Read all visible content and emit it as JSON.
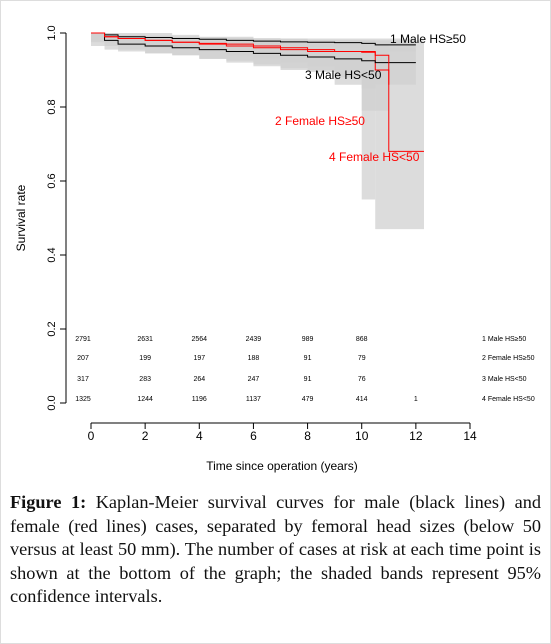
{
  "chart_data": {
    "type": "step",
    "xlabel": "Time since operation (years)",
    "ylabel": "Survival rate",
    "xlim": [
      0,
      14
    ],
    "xticks": [
      0,
      2,
      4,
      6,
      8,
      10,
      12,
      14
    ],
    "ylim": [
      0,
      1
    ],
    "yticks": [
      {
        "value": 0,
        "label": "0.0"
      },
      0.2,
      0.4,
      0.6,
      0.8,
      {
        "value": 1,
        "label": "1.0"
      }
    ],
    "band_color": "#d0d0d0",
    "series": [
      {
        "name": "1 Male HS≥50",
        "color": "#000000",
        "x": [
          0,
          0.5,
          1,
          2,
          3,
          4,
          5,
          6,
          7,
          8,
          9,
          10,
          10.5,
          11,
          12
        ],
        "values": [
          1,
          0.995,
          0.99,
          0.988,
          0.985,
          0.983,
          0.98,
          0.978,
          0.976,
          0.975,
          0.974,
          0.972,
          0.968,
          0.968,
          0.968
        ],
        "lower": [
          1,
          0.992,
          0.986,
          0.983,
          0.98,
          0.977,
          0.973,
          0.97,
          0.967,
          0.964,
          0.962,
          0.958,
          0.95,
          0.95,
          0.95
        ],
        "upper": [
          1,
          0.998,
          0.994,
          0.993,
          0.99,
          0.989,
          0.987,
          0.986,
          0.985,
          0.985,
          0.985,
          0.985,
          0.985,
          0.985,
          0.985
        ]
      },
      {
        "name": "2 Female HS≥50",
        "color": "#ff0000",
        "x": [
          0,
          0.5,
          1,
          2,
          3,
          4,
          5,
          6,
          7,
          8,
          9,
          10,
          10.5,
          11
        ],
        "values": [
          1,
          0.99,
          0.985,
          0.98,
          0.975,
          0.97,
          0.965,
          0.96,
          0.955,
          0.95,
          0.95,
          0.95,
          0.9,
          0.86
        ],
        "lower": [
          1,
          0.975,
          0.965,
          0.955,
          0.945,
          0.94,
          0.93,
          0.92,
          0.91,
          0.9,
          0.9,
          0.88,
          0.79,
          0.79
        ],
        "upper": [
          1,
          1,
          1,
          1,
          0.995,
          0.99,
          0.99,
          0.985,
          0.985,
          0.98,
          0.98,
          0.98,
          0.97,
          0.97
        ]
      },
      {
        "name": "3 Male HS<50",
        "color": "#000000",
        "x": [
          0,
          0.5,
          1,
          2,
          3,
          4,
          5,
          6,
          7,
          8,
          9,
          10,
          10.5,
          11,
          12
        ],
        "values": [
          1,
          0.98,
          0.97,
          0.965,
          0.96,
          0.955,
          0.95,
          0.945,
          0.94,
          0.935,
          0.93,
          0.925,
          0.92,
          0.92,
          0.92
        ],
        "lower": [
          1,
          0.965,
          0.955,
          0.95,
          0.945,
          0.94,
          0.93,
          0.925,
          0.915,
          0.905,
          0.895,
          0.86,
          0.55,
          0.86,
          0.86
        ],
        "upper": [
          1,
          0.99,
          0.985,
          0.98,
          0.975,
          0.97,
          0.965,
          0.96,
          0.96,
          0.955,
          0.955,
          0.955,
          0.96,
          0.96,
          0.96
        ]
      },
      {
        "name": "4 Female HS<50",
        "color": "#ff0000",
        "x": [
          0,
          0.5,
          1,
          2,
          3,
          4,
          5,
          6,
          7,
          8,
          9,
          10,
          10.5,
          11,
          12.3
        ],
        "values": [
          1,
          0.99,
          0.985,
          0.98,
          0.975,
          0.972,
          0.97,
          0.965,
          0.96,
          0.955,
          0.95,
          0.948,
          0.94,
          0.68,
          0.68
        ],
        "lower": [
          1,
          0.98,
          0.975,
          0.965,
          0.96,
          0.955,
          0.95,
          0.94,
          0.93,
          0.92,
          0.91,
          0.9,
          0.85,
          0.47,
          0.47
        ],
        "upper": [
          1,
          1,
          0.995,
          0.99,
          0.99,
          0.985,
          0.985,
          0.98,
          0.98,
          0.98,
          0.98,
          0.98,
          0.98,
          0.98,
          0.98
        ]
      }
    ],
    "at_risk": {
      "x": [
        0,
        2,
        4,
        6,
        8,
        10,
        12
      ],
      "rows": [
        [
          2791,
          2631,
          2564,
          2439,
          989,
          868,
          null
        ],
        [
          207,
          199,
          197,
          188,
          91,
          79,
          null
        ],
        [
          317,
          283,
          264,
          247,
          91,
          76,
          null
        ],
        [
          1325,
          1244,
          1196,
          1137,
          479,
          414,
          1
        ]
      ]
    }
  },
  "caption": {
    "label": "Figure 1:",
    "text": "Kaplan-Meier survival curves for male (black lines) and female (red lines) cases, separated by femoral head sizes (below 50 versus at least 50 mm). The number of cases at risk at each time point is shown at the bottom of the graph; the shaded bands represent 95% confidence intervals."
  }
}
